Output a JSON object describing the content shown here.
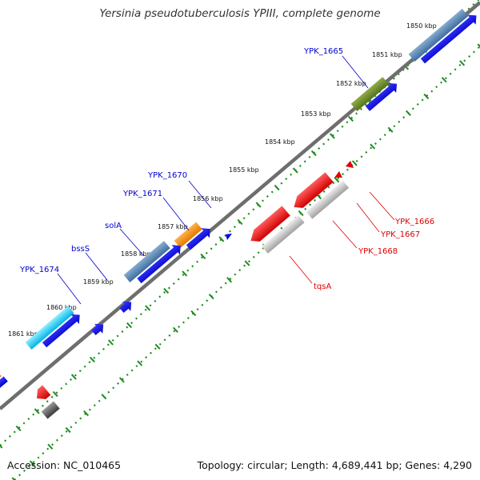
{
  "title": "Yersinia pseudotuberculosis YPIII, complete genome",
  "footer": {
    "accession_label": "Accession: NC_010465",
    "summary": "Topology: circular; Length: 4,689,441 bp; Genes: 4,290"
  },
  "colors": {
    "backbone": "#808080",
    "tick": "#1e8c1e",
    "forward_label": "#0000cc",
    "reverse_label": "#dd0000",
    "cds": "#0000ee"
  },
  "kbp_ticks": [
    "1850 kbp",
    "1851 kbp",
    "1852 kbp",
    "1853 kbp",
    "1854 kbp",
    "1855 kbp",
    "1856 kbp",
    "1857 kbp",
    "1858 kbp",
    "1859 kbp",
    "1860 kbp",
    "1861 kbp"
  ],
  "forward_labels": [
    "YPK_1665",
    "YPK_1670",
    "YPK_1671",
    "solA",
    "bssS",
    "YPK_1674"
  ],
  "reverse_labels": [
    "YPK_1666",
    "YPK_1667",
    "YPK_1668",
    "tqsA"
  ]
}
